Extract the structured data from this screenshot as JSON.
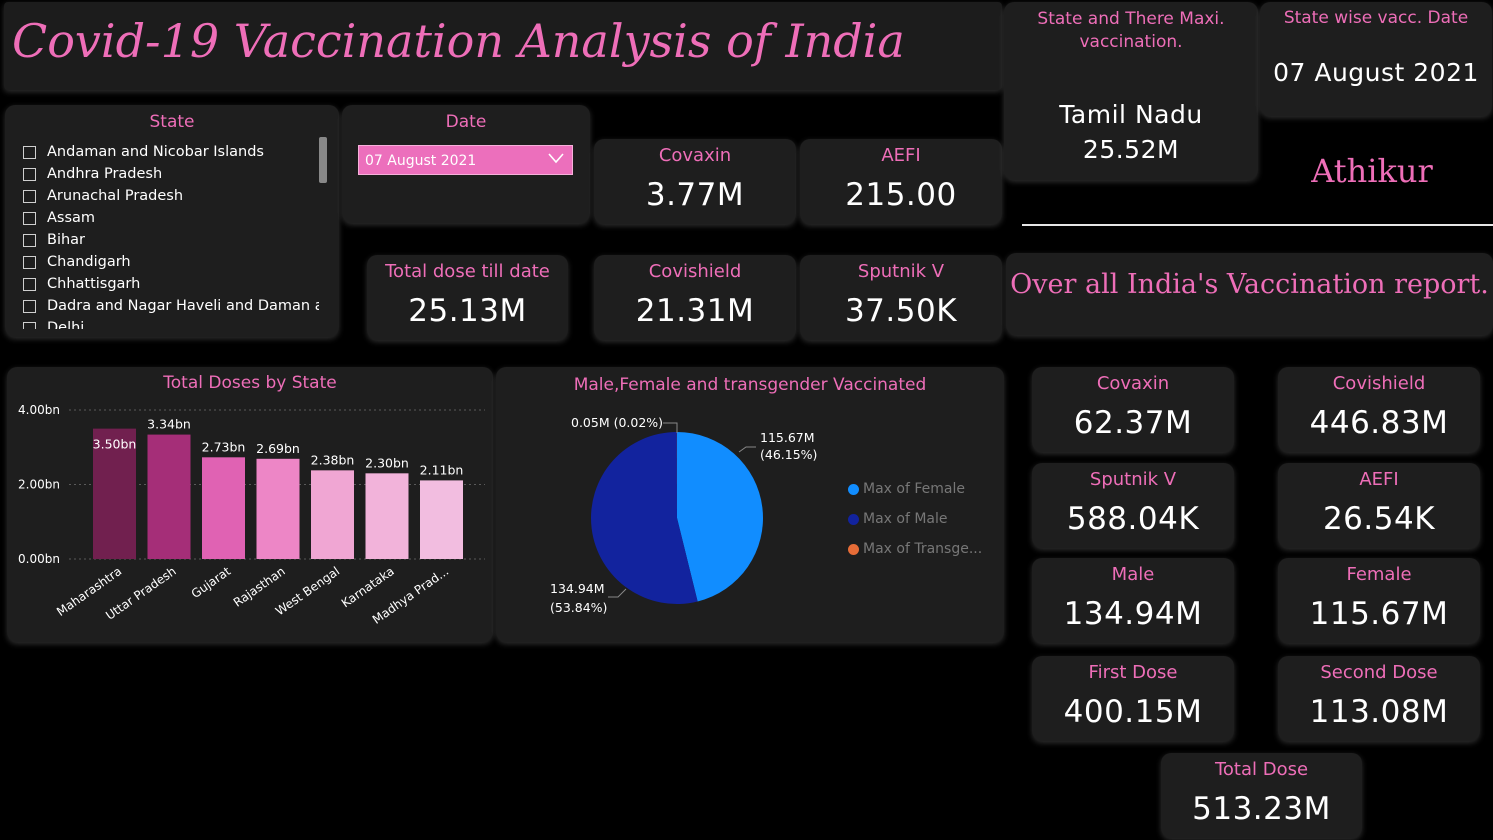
{
  "title": "Covid-19 Vaccination Analysis of India",
  "state_slicer": {
    "header": "State",
    "items": [
      "Andaman and Nicobar Islands",
      "Andhra Pradesh",
      "Arunachal Pradesh",
      "Assam",
      "Bihar",
      "Chandigarh",
      "Chhattisgarh",
      "Dadra and Nagar Haveli and Daman an...",
      "Delhi"
    ]
  },
  "date_slicer": {
    "header": "Date",
    "value": "07 August 2021"
  },
  "state_kpi": {
    "label": "Total dose till date",
    "value": "25.13M"
  },
  "state_cards": [
    {
      "label": "Covaxin",
      "value": "3.77M"
    },
    {
      "label": "AEFI",
      "value": "215.00"
    },
    {
      "label": "Covishield",
      "value": "21.31M"
    },
    {
      "label": "Sputnik V",
      "value": "37.50K"
    }
  ],
  "max_state": {
    "label": "State and There Maxi. vaccination.",
    "state": "Tamil Nadu",
    "value": "25.52M"
  },
  "vacc_date": {
    "label": "State wise vacc. Date",
    "value": "07 August 2021"
  },
  "author": "Athikur",
  "overall_title": "Over all India's Vaccination report.",
  "india_cards": [
    {
      "label": "Covaxin",
      "value": "62.37M"
    },
    {
      "label": "Covishield",
      "value": "446.83M"
    },
    {
      "label": "Sputnik V",
      "value": "588.04K"
    },
    {
      "label": "AEFI",
      "value": "26.54K"
    },
    {
      "label": "Male",
      "value": "134.94M"
    },
    {
      "label": "Female",
      "value": "115.67M"
    },
    {
      "label": "First Dose",
      "value": "400.15M"
    },
    {
      "label": "Second Dose",
      "value": "113.08M"
    },
    {
      "label": "Total Dose",
      "value": "513.23M"
    }
  ],
  "colors": {
    "accent": "#ee6eb8",
    "background": "#000000",
    "card": "#1e1e1e"
  },
  "chart_data": [
    {
      "type": "bar",
      "title": "Total Doses by State",
      "categories": [
        "Maharashtra",
        "Uttar Pradesh",
        "Gujarat",
        "Rajasthan",
        "West Bengal",
        "Karnataka",
        "Madhya Prad..."
      ],
      "values": [
        3.5,
        3.34,
        2.73,
        2.69,
        2.38,
        2.3,
        2.11
      ],
      "data_labels": [
        "3.50bn",
        "3.34bn",
        "2.73bn",
        "2.69bn",
        "2.38bn",
        "2.30bn",
        "2.11bn"
      ],
      "bar_colors": [
        "#71204f",
        "#a52e78",
        "#e062b3",
        "#ed86c6",
        "#f0a6d3",
        "#f2b3da",
        "#f2bde0"
      ],
      "yticks": [
        "0.00bn",
        "2.00bn",
        "4.00bn"
      ],
      "ylim": [
        0,
        4
      ],
      "grid": true
    },
    {
      "type": "pie",
      "title": "Male,Female and transgender Vaccinated",
      "labels": [
        "Max of Female",
        "Max of Male",
        "Max of Transge..."
      ],
      "values": [
        115.67,
        134.94,
        0.05
      ],
      "colors": [
        "#118dff",
        "#12239e",
        "#e66c37"
      ],
      "data_labels": [
        {
          "value": "115.67M",
          "percent": "(46.15%)"
        },
        {
          "value": "134.94M",
          "percent": "(53.84%)"
        },
        {
          "value": "0.05M (0.02%)"
        }
      ],
      "legend_position": "right"
    }
  ]
}
